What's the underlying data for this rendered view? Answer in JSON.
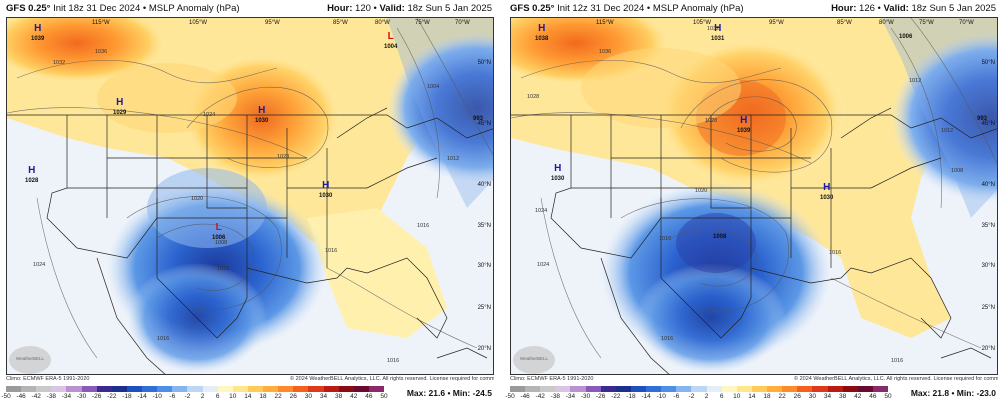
{
  "panels": [
    {
      "id": "left",
      "model": "GFS 0.25°",
      "init": "Init 18z 31 Dec 2024",
      "product": "MSLP Anomaly (hPa)",
      "hour_label": "Hour:",
      "hour": "120",
      "valid_label": "Valid:",
      "valid": "18z Sun 5 Jan 2025",
      "max_min": "Max: 21.6 • Min: -24.5",
      "pressure_centers": [
        {
          "type": "H",
          "value": "1039",
          "color": "#1a1aa8"
        },
        {
          "type": "H",
          "value": "1029",
          "color": "#1a1aa8"
        },
        {
          "type": "H",
          "value": "1030",
          "color": "#1a1aa8"
        },
        {
          "type": "H",
          "value": "1028",
          "color": "#1a1aa8"
        },
        {
          "type": "H",
          "value": "1030",
          "color": "#1a1aa8"
        },
        {
          "type": "L",
          "value": "1006",
          "color": "#d01010"
        },
        {
          "type": "L",
          "value": "1004",
          "color": "#d01010"
        },
        {
          "type": "",
          "value": "993",
          "color": "#111111"
        }
      ],
      "isobars": [
        "1036",
        "1032",
        "1028",
        "1024",
        "1016",
        "1012",
        "1008",
        "1004",
        "1020",
        "1016",
        "1012",
        "1016",
        "1024",
        "1016"
      ],
      "longitudes": [
        "115°W",
        "105°W",
        "95°W",
        "85°W",
        "80°W",
        "75°W",
        "70°W"
      ],
      "latitudes": [
        "50°N",
        "45°N",
        "40°N",
        "35°N",
        "30°N",
        "25°N",
        "20°N"
      ]
    },
    {
      "id": "right",
      "model": "GFS 0.25°",
      "init": "Init 12z 31 Dec 2024",
      "product": "MSLP Anomaly (hPa)",
      "hour_label": "Hour:",
      "hour": "126",
      "valid_label": "Valid:",
      "valid": "18z Sun 5 Jan 2025",
      "max_min": "Max: 21.8 • Min: -23.0",
      "pressure_centers": [
        {
          "type": "H",
          "value": "1038",
          "color": "#1a1aa8"
        },
        {
          "type": "H",
          "value": "1031",
          "color": "#1a1aa8"
        },
        {
          "type": "H",
          "value": "1039",
          "color": "#1a1aa8"
        },
        {
          "type": "H",
          "value": "1030",
          "color": "#1a1aa8"
        },
        {
          "type": "H",
          "value": "1030",
          "color": "#1a1aa8"
        },
        {
          "type": "",
          "value": "1008",
          "color": "#111111"
        },
        {
          "type": "",
          "value": "1006",
          "color": "#111111"
        },
        {
          "type": "",
          "value": "993",
          "color": "#111111"
        }
      ],
      "isobars": [
        "1036",
        "1032",
        "1028",
        "1028",
        "1024",
        "1016",
        "1012",
        "1008",
        "1020",
        "1016",
        "1012",
        "1016",
        "1024",
        "1016"
      ],
      "longitudes": [
        "115°W",
        "105°W",
        "95°W",
        "85°W",
        "80°W",
        "75°W",
        "70°W"
      ],
      "latitudes": [
        "50°N",
        "45°N",
        "40°N",
        "35°N",
        "30°N",
        "25°N",
        "20°N"
      ]
    }
  ],
  "credits": {
    "climo": "Climo: ECMWF ERA-5 1991-2020",
    "copyright": "© 2024 WeatherBELL Analytics, LLC. All rights reserved. License required for commercial distribution.",
    "logo_text": "WeatherBELL"
  },
  "colorbar": {
    "ticks": [
      "-50",
      "-46",
      "-42",
      "-38",
      "-34",
      "-30",
      "-26",
      "-22",
      "-18",
      "-14",
      "-10",
      "-6",
      "-2",
      "2",
      "6",
      "10",
      "14",
      "18",
      "22",
      "26",
      "30",
      "34",
      "38",
      "42",
      "46",
      "50"
    ],
    "colors": [
      "#9a9a9a",
      "#b4b4b4",
      "#c9c9c9",
      "#d9c4e6",
      "#b990d0",
      "#8a5ab8",
      "#3a2a90",
      "#1c2f8f",
      "#1f4fc0",
      "#2f6fd8",
      "#4d8ee6",
      "#86b4ee",
      "#bdd6f4",
      "#e4edf8",
      "#fff7c2",
      "#ffe68a",
      "#ffcc57",
      "#ffae3a",
      "#ff8a2a",
      "#f4601e",
      "#dc3a1a",
      "#b81a14",
      "#8c0a12",
      "#6a0a30",
      "#8a2a6a"
    ]
  }
}
